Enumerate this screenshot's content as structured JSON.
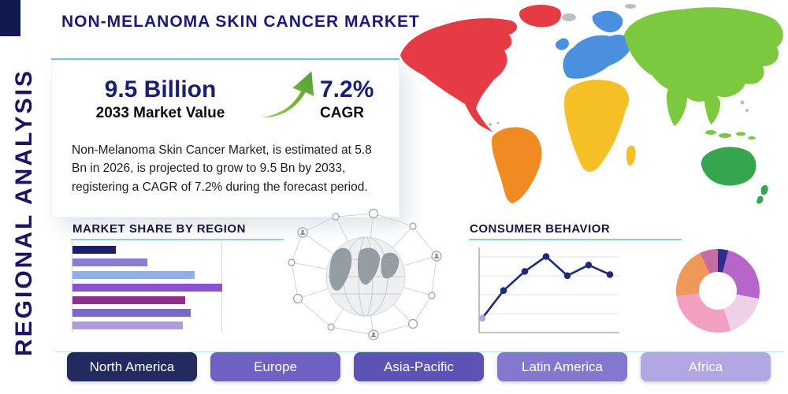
{
  "banner": {
    "text": "REGIONAL ANALYSIS"
  },
  "header": {
    "title": "NON-MELANOMA SKIN CANCER MARKET"
  },
  "card": {
    "value": "9.5 Billion",
    "value_label": "2033 Market Value",
    "cagr": "7.2%",
    "cagr_label": "CAGR",
    "description": "Non-Melanoma Skin Cancer Market, is estimated at 5.8 Bn in 2026, is projected to grow to 9.5 Bn by 2033, registering a CAGR of 7.2% during the forecast period."
  },
  "sections": {
    "market_share_title": "MARKET SHARE BY REGION",
    "consumer_behavior_title": "CONSUMER BEHAVIOR"
  },
  "region_buttons": [
    {
      "label": "North America",
      "color": "#222b5f"
    },
    {
      "label": "Europe",
      "color": "#6e61c3"
    },
    {
      "label": "Asia-Pacific",
      "color": "#5b53b5"
    },
    {
      "label": "Latin America",
      "color": "#8478ce"
    },
    {
      "label": "Africa",
      "color": "#b2a7e4"
    }
  ],
  "map_palette": {
    "north_america": "#e63a45",
    "greenland": "#e63a45",
    "south_america": "#f18a23",
    "europe": "#4a8fe0",
    "africa": "#f5c026",
    "asia": "#7cc83f",
    "australia": "#36a64e",
    "islands": "#b9bfc6"
  },
  "accents": {
    "navy": "#1b1464",
    "teal_rule": "#8fd2df",
    "arrow_green_light": "#9ccc3f",
    "arrow_green_dark": "#4c9e38"
  },
  "chart_data": [
    {
      "type": "bar",
      "title": "MARKET SHARE BY REGION",
      "orientation": "horizontal",
      "axis_labels_visible": false,
      "units": "relative width (px), no axis labels shown",
      "bars": [
        {
          "value": 55,
          "color": "#1b2064"
        },
        {
          "value": 95,
          "color": "#8a7ccf"
        },
        {
          "value": 155,
          "color": "#8fb0e6"
        },
        {
          "value": 190,
          "color": "#8a52cc"
        },
        {
          "value": 143,
          "color": "#8f2f8c"
        },
        {
          "value": 150,
          "color": "#7a68c6"
        },
        {
          "value": 140,
          "color": "#b29bd9"
        }
      ]
    },
    {
      "type": "line",
      "title": "CONSUMER BEHAVIOR",
      "x": [
        1,
        2,
        3,
        4,
        5,
        6,
        7
      ],
      "values": [
        1.2,
        3.8,
        5.6,
        7.0,
        5.2,
        6.2,
        5.3
      ],
      "ylim": [
        0,
        8
      ],
      "grid": true,
      "axis_labels_visible": false,
      "line_color": "#1f2a7a",
      "first_marker_color": "#b3a3da"
    },
    {
      "type": "pie",
      "donut": true,
      "title": "",
      "labels_visible": false,
      "segments": [
        {
          "value": 4,
          "color": "#2a2f8f"
        },
        {
          "value": 24,
          "color": "#b765c8"
        },
        {
          "value": 17,
          "color": "#eed0e8"
        },
        {
          "value": 28,
          "color": "#f2a0c2"
        },
        {
          "value": 20,
          "color": "#f0975a"
        },
        {
          "value": 7,
          "color": "#c56ba6"
        }
      ]
    }
  ]
}
